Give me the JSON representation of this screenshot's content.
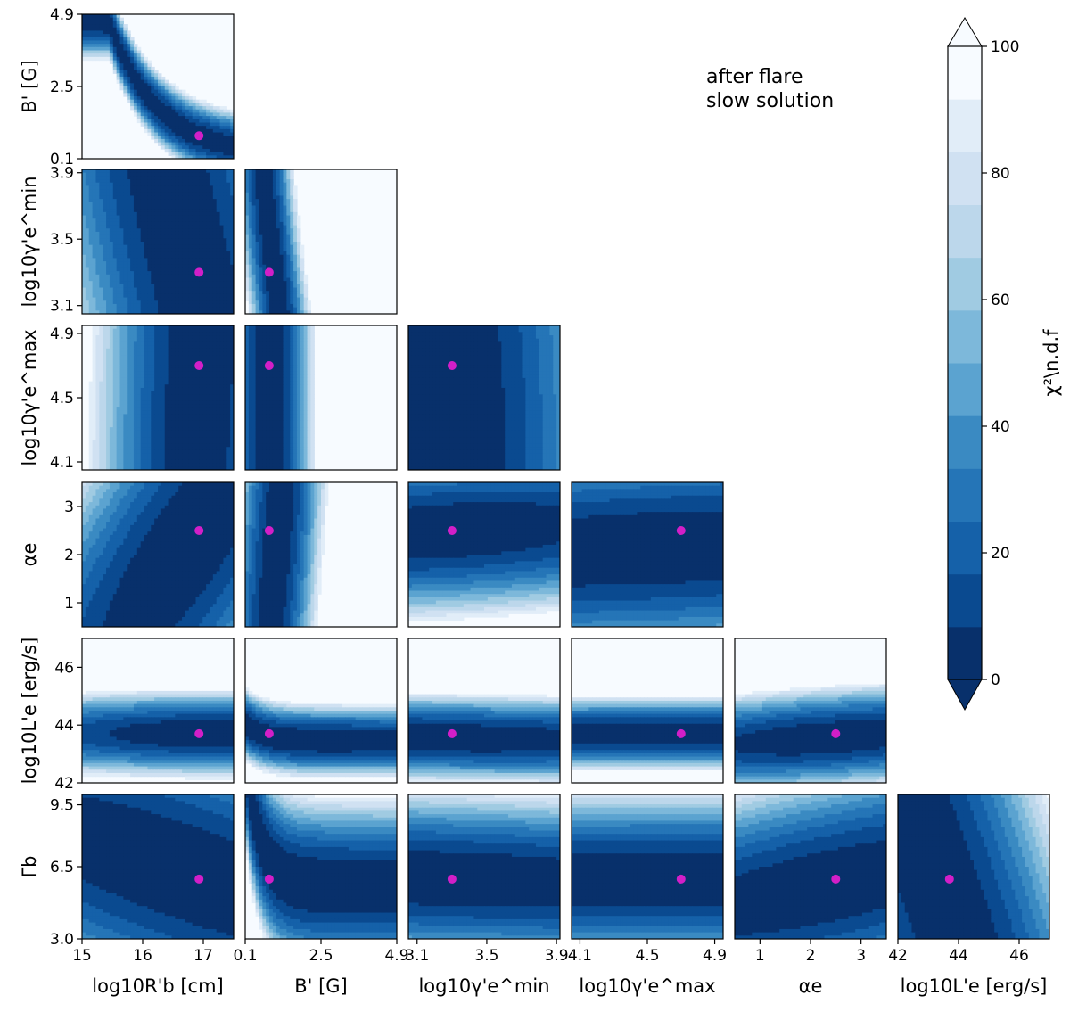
{
  "annotation": {
    "line1": "after flare",
    "line2": "slow solution"
  },
  "colors": {
    "best_fit": "#d21fc8",
    "levels": [
      "#08306b",
      "#0a4a90",
      "#1561a9",
      "#2575b7",
      "#3a8ac2",
      "#5ba3d0",
      "#7db8da",
      "#a0cbe2",
      "#bcd7eb",
      "#d0e1f2",
      "#e1edf8",
      "#f7fbff"
    ]
  },
  "chart_data": {
    "type": "corner-contour",
    "parameters": [
      {
        "key": "R",
        "label": "log10R'b [cm]",
        "ticks": [
          "15",
          "16",
          "17"
        ],
        "range": [
          15,
          17.5
        ]
      },
      {
        "key": "B",
        "label": "B' [G]",
        "ticks": [
          "0.1",
          "2.5",
          "4.9"
        ],
        "range": [
          0.1,
          4.9
        ]
      },
      {
        "key": "gmin",
        "label": "log10γ'e^min",
        "ticks": [
          "3.1",
          "3.5",
          "3.9"
        ],
        "range": [
          3.05,
          3.92
        ]
      },
      {
        "key": "gmax",
        "label": "log10γ'e^max",
        "ticks": [
          "4.1",
          "4.5",
          "4.9"
        ],
        "range": [
          4.05,
          4.95
        ]
      },
      {
        "key": "alpha",
        "label": "αe",
        "ticks": [
          "1",
          "2",
          "3"
        ],
        "range": [
          0.5,
          3.5
        ]
      },
      {
        "key": "Le",
        "label": "log10L'e [erg/s]",
        "ticks": [
          "42",
          "44",
          "46"
        ],
        "range": [
          42,
          47
        ]
      },
      {
        "key": "Gb",
        "label": "Γb",
        "ticks": [
          "3.0",
          "6.5",
          "9.5"
        ],
        "range": [
          3,
          10
        ]
      }
    ],
    "best_fit": {
      "R": 16.93,
      "B": 0.86,
      "gmin": 3.3,
      "gmax": 4.7,
      "alpha": 2.5,
      "Le": 43.7,
      "Gb": 5.9
    },
    "colorbar": {
      "label": "χ²\\n.d.f",
      "ticks": [
        "0",
        "20",
        "40",
        "60",
        "80",
        "100"
      ],
      "range": [
        0,
        100
      ],
      "extend": "both",
      "levels": 12
    }
  }
}
